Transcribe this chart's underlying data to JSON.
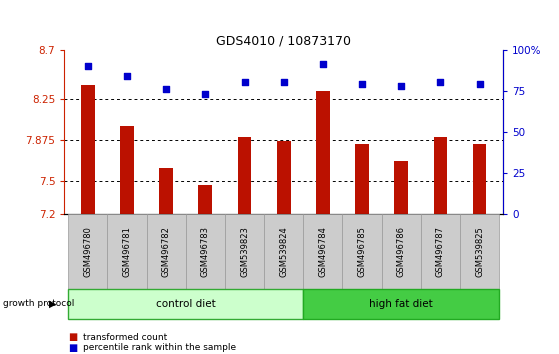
{
  "title": "GDS4010 / 10873170",
  "samples": [
    "GSM496780",
    "GSM496781",
    "GSM496782",
    "GSM496783",
    "GSM539823",
    "GSM539824",
    "GSM496784",
    "GSM496785",
    "GSM496786",
    "GSM496787",
    "GSM539825"
  ],
  "bar_values": [
    8.38,
    8.0,
    7.62,
    7.47,
    7.9,
    7.87,
    8.32,
    7.84,
    7.68,
    7.9,
    7.84
  ],
  "dot_values": [
    90,
    84,
    76,
    73,
    80,
    80,
    91,
    79,
    78,
    80,
    79
  ],
  "y_min": 7.2,
  "y_max": 8.7,
  "y_ticks": [
    7.2,
    7.5,
    7.875,
    8.25,
    8.7
  ],
  "y_tick_labels": [
    "7.2",
    "7.5",
    "7.875",
    "8.25",
    "8.7"
  ],
  "y2_ticks": [
    0,
    25,
    50,
    75,
    100
  ],
  "y2_tick_labels": [
    "0",
    "25",
    "50",
    "75",
    "100%"
  ],
  "bar_color": "#bb1100",
  "dot_color": "#0000cc",
  "control_color": "#ccffcc",
  "high_fat_color": "#44cc44",
  "xlabel_bg": "#cccccc",
  "group_label_control": "control diet",
  "group_label_highfat": "high fat diet",
  "growth_protocol_label": "growth protocol",
  "legend_bar_label": "transformed count",
  "legend_dot_label": "percentile rank within the sample",
  "left_axis_color": "#cc2200",
  "right_axis_color": "#0000cc",
  "n_control": 6,
  "n_highfat": 5
}
